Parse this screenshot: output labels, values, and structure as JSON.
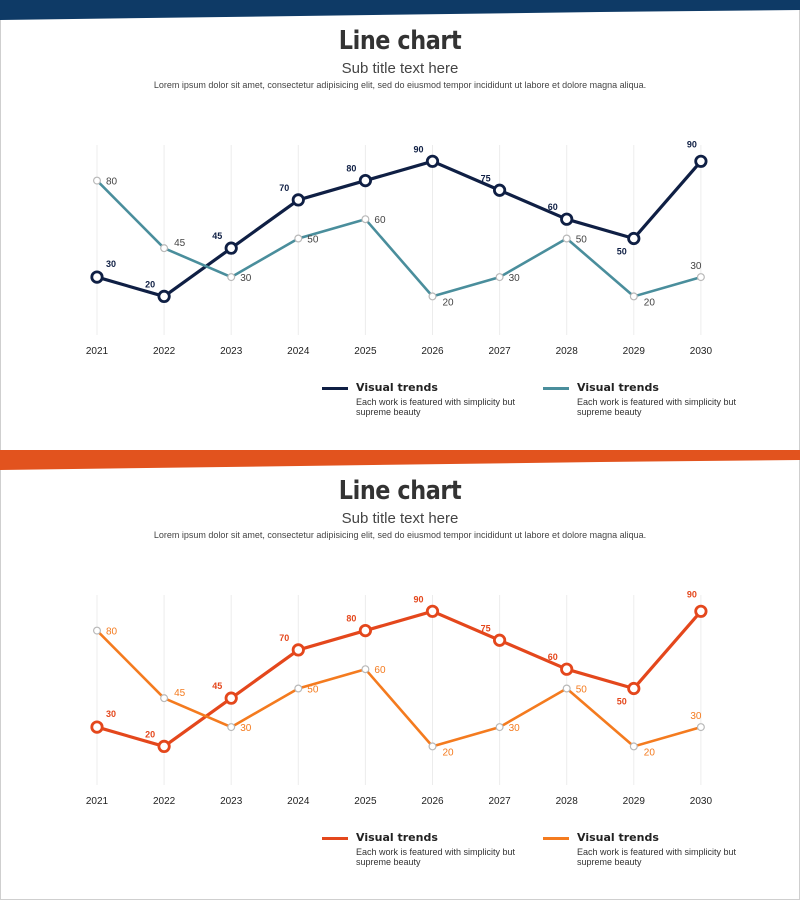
{
  "chart_data": [
    {
      "type": "line",
      "title": "Line chart",
      "subtitle": "Sub title text here",
      "description": "Lorem ipsum dolor sit amet, consectetur adipisicing elit, sed do eiusmod tempor incididunt ut labore et dolore magna aliqua.",
      "categories": [
        "2021",
        "2022",
        "2023",
        "2024",
        "2025",
        "2026",
        "2027",
        "2028",
        "2029",
        "2030"
      ],
      "ylim": [
        0,
        100
      ],
      "grid": "vertical",
      "legend_position": "bottom-right",
      "banner_color": "#0e3a66",
      "series": [
        {
          "name": "Visual trends",
          "description": "Each work is featured with simplicity but supreme beauty",
          "color": "#0f1f44",
          "values": [
            30,
            20,
            45,
            70,
            80,
            90,
            75,
            60,
            50,
            90
          ]
        },
        {
          "name": "Visual trends",
          "description": "Each work is featured with simplicity but supreme beauty",
          "color": "#4a8e9c",
          "values": [
            80,
            45,
            30,
            50,
            60,
            20,
            30,
            50,
            20,
            30
          ]
        }
      ]
    },
    {
      "type": "line",
      "title": "Line chart",
      "subtitle": "Sub title text here",
      "description": "Lorem ipsum dolor sit amet, consectetur adipisicing elit, sed do eiusmod tempor incididunt ut labore et dolore magna aliqua.",
      "categories": [
        "2021",
        "2022",
        "2023",
        "2024",
        "2025",
        "2026",
        "2027",
        "2028",
        "2029",
        "2030"
      ],
      "ylim": [
        0,
        100
      ],
      "grid": "vertical",
      "legend_position": "bottom-right",
      "banner_color": "#e2531e",
      "series": [
        {
          "name": "Visual trends",
          "description": "Each work is featured with simplicity but supreme beauty",
          "color": "#e4471c",
          "values": [
            30,
            20,
            45,
            70,
            80,
            90,
            75,
            60,
            50,
            90
          ]
        },
        {
          "name": "Visual trends",
          "description": "Each work is featured with simplicity but supreme beauty",
          "color": "#f47b1f",
          "values": [
            80,
            45,
            30,
            50,
            60,
            20,
            30,
            50,
            20,
            30
          ]
        }
      ]
    }
  ]
}
